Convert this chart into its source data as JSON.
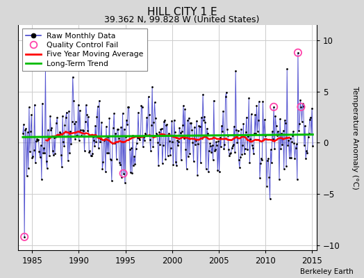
{
  "title": "HILL CITY 1 E",
  "subtitle": "39.362 N, 99.828 W (United States)",
  "ylabel": "Temperature Anomaly (°C)",
  "credit": "Berkeley Earth",
  "xlim": [
    1983.5,
    2015.5
  ],
  "ylim": [
    -10.5,
    11.5
  ],
  "yticks": [
    -10,
    -5,
    0,
    5,
    10
  ],
  "xticks": [
    1985,
    1990,
    1995,
    2000,
    2005,
    2010,
    2015
  ],
  "fig_bg_color": "#d8d8d8",
  "plot_bg_color": "#ffffff",
  "grid_color": "#cccccc",
  "raw_line_color": "#4444cc",
  "raw_dot_color": "#000000",
  "moving_avg_color": "#ff0000",
  "trend_color": "#00bb00",
  "qc_fail_color": "#ff44aa",
  "seed": 77,
  "n_months": 373,
  "start_year": 1984.0,
  "end_year": 2015.08
}
